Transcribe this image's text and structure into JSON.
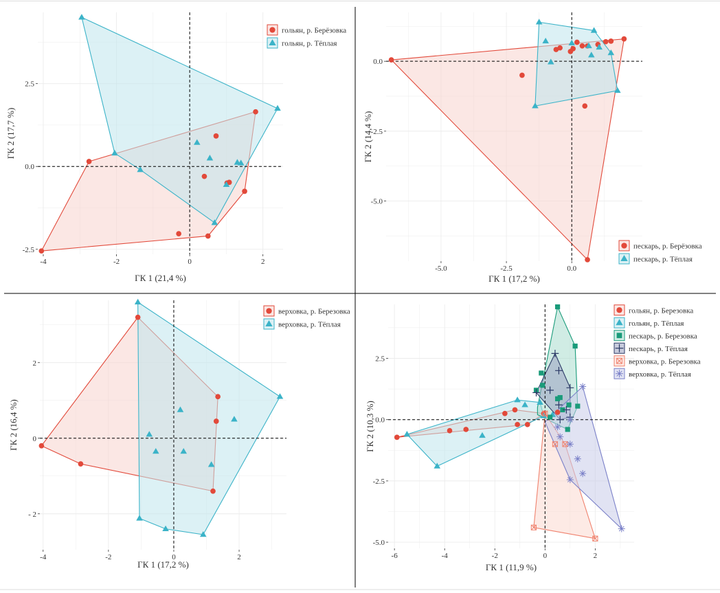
{
  "chart_data": [
    {
      "type": "scatter",
      "xlabel": "ГК 1 (21,4 %)",
      "ylabel": "ГК 2 (17,7 %)",
      "xlim": [
        -4.15,
        2.55
      ],
      "ylim": [
        -2.65,
        4.65
      ],
      "xticks": [
        -4,
        -2,
        0,
        2
      ],
      "xtick_labels": [
        "-4",
        "-2",
        "0",
        "2"
      ],
      "yticks": [
        -2.5,
        0,
        2.5
      ],
      "ytick_labels": [
        "-2.5",
        "0.0",
        "2.5"
      ],
      "legend_position": "top-right",
      "series": [
        {
          "name": "гольян, р. Берёзовка",
          "marker": "circle",
          "color": "#E2493A",
          "hull": [
            [
              -4.05,
              -2.55
            ],
            [
              0.5,
              -2.1
            ],
            [
              1.5,
              -0.75
            ],
            [
              1.8,
              1.65
            ],
            [
              -2.75,
              0.15
            ]
          ],
          "points": [
            [
              -4.05,
              -2.55
            ],
            [
              -2.75,
              0.15
            ],
            [
              1.8,
              1.65
            ],
            [
              0.72,
              0.92
            ],
            [
              0.4,
              -0.3
            ],
            [
              1.02,
              -0.5
            ],
            [
              1.08,
              -0.48
            ],
            [
              1.5,
              -0.75
            ],
            [
              0.5,
              -2.1
            ],
            [
              -0.3,
              -2.03
            ]
          ]
        },
        {
          "name": "гольян, р. Тёплая",
          "marker": "triangle",
          "color": "#3BB3C8",
          "hull": [
            [
              -2.95,
              4.5
            ],
            [
              2.4,
              1.75
            ],
            [
              0.68,
              -1.7
            ],
            [
              -1.35,
              -0.1
            ],
            [
              -2.05,
              0.4
            ]
          ],
          "points": [
            [
              -2.95,
              4.5
            ],
            [
              2.4,
              1.75
            ],
            [
              0.68,
              -1.7
            ],
            [
              -2.05,
              0.4
            ],
            [
              -1.35,
              -0.1
            ],
            [
              0.2,
              0.72
            ],
            [
              0.55,
              0.25
            ],
            [
              1.3,
              0.12
            ],
            [
              1.4,
              0.1
            ],
            [
              1.0,
              -0.55
            ]
          ]
        }
      ]
    },
    {
      "type": "scatter",
      "xlabel": "ГК 1 (17,2 %)",
      "ylabel": "ГК 2 (14,4 %)",
      "xlim": [
        -7.1,
        2.7
      ],
      "ylim": [
        -7.15,
        1.75
      ],
      "xticks": [
        -5,
        -2.5,
        0
      ],
      "xtick_labels": [
        "-5.0",
        "-2.5",
        "0.0"
      ],
      "yticks": [
        -5,
        -2.5,
        0
      ],
      "ytick_labels": [
        "-5.0",
        "-2.5",
        "0.0"
      ],
      "legend_position": "bottom-right",
      "series": [
        {
          "name": "пескарь, р. Берёзовка",
          "marker": "circle",
          "color": "#E2493A",
          "hull": [
            [
              -6.9,
              0.05
            ],
            [
              0.6,
              -7.1
            ],
            [
              2.0,
              0.8
            ]
          ],
          "points": [
            [
              -6.9,
              0.05
            ],
            [
              0.6,
              -7.1
            ],
            [
              2.0,
              0.8
            ],
            [
              -1.9,
              -0.5
            ],
            [
              0.5,
              -1.6
            ],
            [
              -0.6,
              0.42
            ],
            [
              -0.45,
              0.48
            ],
            [
              -0.05,
              0.35
            ],
            [
              0.05,
              0.45
            ],
            [
              0.2,
              0.68
            ],
            [
              0.4,
              0.55
            ],
            [
              0.6,
              0.55
            ],
            [
              1.0,
              0.6
            ],
            [
              1.3,
              0.7
            ],
            [
              1.5,
              0.72
            ]
          ]
        },
        {
          "name": "пескарь, р. Тёплая",
          "marker": "triangle",
          "color": "#3BB3C8",
          "hull": [
            [
              -1.25,
              1.4
            ],
            [
              0.85,
              1.1
            ],
            [
              1.5,
              0.3
            ],
            [
              1.75,
              -1.05
            ],
            [
              -1.4,
              -1.6
            ]
          ],
          "points": [
            [
              -1.25,
              1.4
            ],
            [
              0.85,
              1.1
            ],
            [
              1.5,
              0.3
            ],
            [
              1.75,
              -1.05
            ],
            [
              -1.4,
              -1.6
            ],
            [
              -1.0,
              0.72
            ],
            [
              -0.8,
              -0.03
            ],
            [
              0.0,
              0.65
            ],
            [
              0.65,
              0.55
            ],
            [
              1.05,
              0.5
            ],
            [
              0.75,
              0.22
            ]
          ]
        }
      ]
    },
    {
      "type": "scatter",
      "xlabel": "ГК 1 (17,2 %)",
      "ylabel": "ГК 2 (16,4 %)",
      "xlim": [
        -4.1,
        3.45
      ],
      "ylim": [
        -2.95,
        3.65
      ],
      "xticks": [
        -4,
        -2,
        0,
        2
      ],
      "xtick_labels": [
        "-4",
        "-2",
        "0",
        "2"
      ],
      "yticks": [
        -2,
        0,
        2
      ],
      "ytick_labels": [
        "- 2",
        "0",
        "2"
      ],
      "legend_position": "top-right",
      "series": [
        {
          "name": "верховка, р. Березовка",
          "marker": "circle",
          "color": "#E2493A",
          "hull": [
            [
              -4.05,
              -0.2
            ],
            [
              -1.1,
              3.2
            ],
            [
              1.35,
              1.1
            ],
            [
              1.2,
              -1.4
            ],
            [
              -2.85,
              -0.68
            ]
          ],
          "points": [
            [
              -4.05,
              -0.2
            ],
            [
              -1.1,
              3.2
            ],
            [
              1.35,
              1.1
            ],
            [
              1.2,
              -1.4
            ],
            [
              -2.85,
              -0.68
            ],
            [
              1.3,
              0.45
            ]
          ]
        },
        {
          "name": "верховка, р. Тёплая",
          "marker": "triangle",
          "color": "#3BB3C8",
          "hull": [
            [
              -1.1,
              3.6
            ],
            [
              3.25,
              1.1
            ],
            [
              0.9,
              -2.55
            ],
            [
              -0.25,
              -2.4
            ],
            [
              -1.05,
              -2.12
            ]
          ],
          "points": [
            [
              -1.1,
              3.6
            ],
            [
              3.25,
              1.1
            ],
            [
              0.9,
              -2.55
            ],
            [
              -0.25,
              -2.4
            ],
            [
              -1.05,
              -2.12
            ],
            [
              -0.75,
              0.1
            ],
            [
              -0.55,
              -0.35
            ],
            [
              0.2,
              0.75
            ],
            [
              0.3,
              -0.35
            ],
            [
              1.15,
              -0.7
            ],
            [
              1.85,
              0.5
            ]
          ]
        }
      ]
    },
    {
      "type": "scatter",
      "xlabel": "ГК 1 (11,9 %)",
      "ylabel": "ГК 2 (10,3 %)",
      "xlim": [
        -6.25,
        3.55
      ],
      "ylim": [
        -5.25,
        4.7
      ],
      "xticks": [
        -6,
        -4,
        -2,
        0,
        2
      ],
      "xtick_labels": [
        "-6",
        "-4",
        "-2",
        "0",
        "2"
      ],
      "yticks": [
        -5,
        -2.5,
        0,
        2.5
      ],
      "ytick_labels": [
        "-5.0",
        "-2.5",
        "0.0",
        "2.5"
      ],
      "legend_position": "top-right",
      "series": [
        {
          "name": "гольян, р. Березовка",
          "marker": "circle",
          "color": "#E2493A",
          "hull": [
            [
              -5.9,
              -0.72
            ],
            [
              -0.7,
              -0.2
            ],
            [
              -0.05,
              0.25
            ],
            [
              -1.2,
              0.4
            ]
          ],
          "points": [
            [
              -5.9,
              -0.72
            ],
            [
              -3.8,
              -0.45
            ],
            [
              -3.15,
              -0.4
            ],
            [
              -1.6,
              0.25
            ],
            [
              -1.2,
              0.4
            ],
            [
              -1.1,
              -0.2
            ],
            [
              -0.7,
              -0.2
            ],
            [
              -0.05,
              0.25
            ],
            [
              0.5,
              0.3
            ]
          ]
        },
        {
          "name": "гольян, р. Тёплая",
          "marker": "triangle",
          "color": "#3BB3C8",
          "hull": [
            [
              -5.5,
              -0.6
            ],
            [
              -1.1,
              0.8
            ],
            [
              -0.2,
              0.7
            ],
            [
              -0.05,
              0.15
            ],
            [
              -4.3,
              -1.9
            ]
          ],
          "points": [
            [
              -5.5,
              -0.6
            ],
            [
              -4.3,
              -1.9
            ],
            [
              -2.5,
              -0.65
            ],
            [
              -1.1,
              0.8
            ],
            [
              -0.8,
              0.6
            ],
            [
              -0.2,
              0.7
            ],
            [
              -0.05,
              0.15
            ],
            [
              0.3,
              0.2
            ]
          ]
        },
        {
          "name": "пескарь, р. Березовка",
          "marker": "square",
          "color": "#1A9B7A",
          "hull": [
            [
              -0.3,
              0.5
            ],
            [
              0.5,
              4.6
            ],
            [
              1.2,
              3.0
            ],
            [
              1.3,
              0.55
            ],
            [
              0.9,
              -0.4
            ],
            [
              -0.3,
              0.2
            ]
          ],
          "points": [
            [
              0.5,
              4.6
            ],
            [
              1.2,
              3.0
            ],
            [
              -0.15,
              1.9
            ],
            [
              -0.1,
              1.4
            ],
            [
              -0.35,
              1.2
            ],
            [
              0.5,
              0.85
            ],
            [
              0.6,
              0.9
            ],
            [
              0.95,
              0.6
            ],
            [
              1.3,
              0.55
            ],
            [
              0.9,
              -0.4
            ],
            [
              0.2,
              0.1
            ],
            [
              0.7,
              0.4
            ]
          ]
        },
        {
          "name": "пескарь, р. Тёплая",
          "marker": "plus",
          "color": "#2B3A66",
          "hull": [
            [
              0.4,
              2.7
            ],
            [
              1.0,
              1.3
            ],
            [
              1.0,
              0.1
            ],
            [
              0.6,
              0.0
            ],
            [
              -0.35,
              1.1
            ]
          ],
          "points": [
            [
              0.4,
              2.7
            ],
            [
              0.55,
              2.0
            ],
            [
              1.0,
              1.3
            ],
            [
              0.2,
              1.2
            ],
            [
              -0.35,
              1.1
            ],
            [
              0.55,
              0.6
            ],
            [
              0.85,
              0.4
            ],
            [
              1.0,
              0.1
            ],
            [
              0.6,
              0.0
            ]
          ]
        },
        {
          "name": "верховка, р. Березовка",
          "marker": "square-x",
          "color": "#F0826E",
          "hull": [
            [
              -0.45,
              -4.4
            ],
            [
              2.0,
              -4.85
            ],
            [
              0.8,
              -1.0
            ],
            [
              0.0,
              0.25
            ]
          ],
          "points": [
            [
              -0.45,
              -4.4
            ],
            [
              2.0,
              -4.85
            ],
            [
              0.0,
              0.25
            ],
            [
              0.4,
              -1.0
            ],
            [
              0.8,
              -1.0
            ]
          ]
        },
        {
          "name": "верховка, р. Тёплая",
          "marker": "asterisk",
          "color": "#7A80C8",
          "hull": [
            [
              0.0,
              -0.1
            ],
            [
              1.5,
              1.35
            ],
            [
              3.05,
              -4.45
            ],
            [
              1.0,
              -2.45
            ]
          ],
          "points": [
            [
              1.5,
              1.35
            ],
            [
              1.0,
              0.0
            ],
            [
              0.6,
              -0.7
            ],
            [
              1.0,
              -1.0
            ],
            [
              1.3,
              -1.6
            ],
            [
              1.5,
              -2.2
            ],
            [
              1.0,
              -2.45
            ],
            [
              3.05,
              -4.45
            ],
            [
              0.5,
              -0.3
            ]
          ]
        }
      ]
    }
  ]
}
